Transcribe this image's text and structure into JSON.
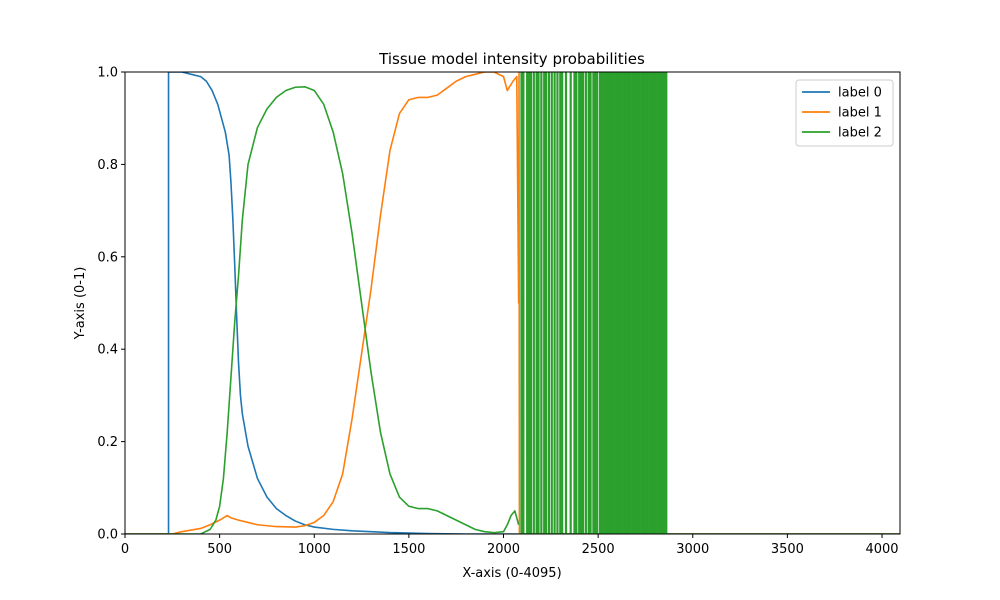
{
  "chart_data": {
    "type": "line",
    "title": "Tissue model intensity probabilities",
    "xlabel": "X-axis (0-4095)",
    "ylabel": "Y-axis (0-1)",
    "xlim": [
      0,
      4095
    ],
    "ylim": [
      0,
      1
    ],
    "xticks": [
      0,
      500,
      1000,
      1500,
      2000,
      2500,
      3000,
      3500,
      4000
    ],
    "yticks": [
      0.0,
      0.2,
      0.4,
      0.6,
      0.8,
      1.0
    ],
    "xtick_labels": [
      "0",
      "500",
      "1000",
      "1500",
      "2000",
      "2500",
      "3000",
      "3500",
      "4000"
    ],
    "ytick_labels": [
      "0.0",
      "0.2",
      "0.4",
      "0.6",
      "0.8",
      "1.0"
    ],
    "grid": false,
    "legend_position": "top-right",
    "series": [
      {
        "name": "label 0",
        "color": "#1f77b4",
        "x": [
          0,
          225,
          230,
          230,
          300,
          350,
          400,
          430,
          460,
          490,
          510,
          530,
          550,
          560,
          570,
          580,
          590,
          600,
          610,
          620,
          650,
          700,
          750,
          800,
          850,
          900,
          950,
          1000,
          1100,
          1200,
          1300,
          1400,
          1500,
          1600,
          1700,
          1800,
          2000,
          4095
        ],
        "y": [
          0,
          0,
          0,
          1.0,
          1.0,
          0.995,
          0.99,
          0.98,
          0.96,
          0.93,
          0.9,
          0.87,
          0.82,
          0.76,
          0.68,
          0.58,
          0.47,
          0.37,
          0.3,
          0.26,
          0.19,
          0.12,
          0.08,
          0.055,
          0.04,
          0.028,
          0.02,
          0.015,
          0.01,
          0.007,
          0.005,
          0.003,
          0.002,
          0.001,
          0.0005,
          0.0,
          0.0,
          0.0
        ]
      },
      {
        "name": "label 1",
        "color": "#ff7f0e",
        "x": [
          0,
          250,
          300,
          400,
          450,
          500,
          540,
          560,
          600,
          650,
          700,
          800,
          900,
          950,
          1000,
          1050,
          1100,
          1150,
          1200,
          1250,
          1300,
          1350,
          1400,
          1450,
          1500,
          1550,
          1600,
          1650,
          1700,
          1750,
          1800,
          1850,
          1900,
          1950,
          2000,
          2020,
          2050,
          2070,
          2080,
          2082,
          2084,
          4095
        ],
        "y": [
          0,
          0,
          0.005,
          0.012,
          0.02,
          0.03,
          0.04,
          0.035,
          0.03,
          0.025,
          0.02,
          0.016,
          0.015,
          0.018,
          0.025,
          0.04,
          0.07,
          0.13,
          0.25,
          0.39,
          0.53,
          0.69,
          0.83,
          0.91,
          0.94,
          0.945,
          0.945,
          0.95,
          0.965,
          0.98,
          0.99,
          0.995,
          1.0,
          1.0,
          0.99,
          0.96,
          0.98,
          0.99,
          0.5,
          1.0,
          0.0,
          0.0
        ]
      },
      {
        "name": "label 2",
        "color": "#2ca02c",
        "x": [
          0,
          400,
          450,
          480,
          500,
          520,
          540,
          560,
          580,
          600,
          620,
          650,
          700,
          750,
          800,
          850,
          900,
          950,
          1000,
          1050,
          1100,
          1150,
          1200,
          1250,
          1300,
          1350,
          1400,
          1450,
          1500,
          1550,
          1600,
          1650,
          1700,
          1750,
          1800,
          1850,
          1900,
          1950,
          2000,
          2020,
          2040,
          2060,
          2080
        ],
        "y": [
          0,
          0,
          0.01,
          0.03,
          0.06,
          0.12,
          0.22,
          0.34,
          0.46,
          0.56,
          0.68,
          0.8,
          0.88,
          0.92,
          0.945,
          0.96,
          0.967,
          0.968,
          0.96,
          0.93,
          0.87,
          0.78,
          0.65,
          0.5,
          0.35,
          0.22,
          0.13,
          0.08,
          0.06,
          0.055,
          0.055,
          0.05,
          0.04,
          0.03,
          0.02,
          0.01,
          0.005,
          0.003,
          0.005,
          0.02,
          0.04,
          0.05,
          0.02
        ],
        "spikes_x": [
          2095,
          2105,
          2125,
          2135,
          2145,
          2160,
          2175,
          2185,
          2200,
          2215,
          2225,
          2240,
          2255,
          2270,
          2285,
          2300,
          2310,
          2330,
          2355,
          2375,
          2385,
          2400,
          2410,
          2420,
          2435,
          2450,
          2460,
          2475,
          2485,
          2495,
          2510,
          2520,
          2530,
          2540,
          2550,
          2560,
          2570,
          2580,
          2590,
          2600,
          2610,
          2620,
          2630,
          2640,
          2650,
          2660,
          2670,
          2680,
          2690,
          2700,
          2710,
          2720,
          2730,
          2740,
          2750,
          2760,
          2770,
          2780,
          2790,
          2800,
          2810,
          2820,
          2830,
          2840,
          2850,
          2860
        ]
      }
    ]
  }
}
